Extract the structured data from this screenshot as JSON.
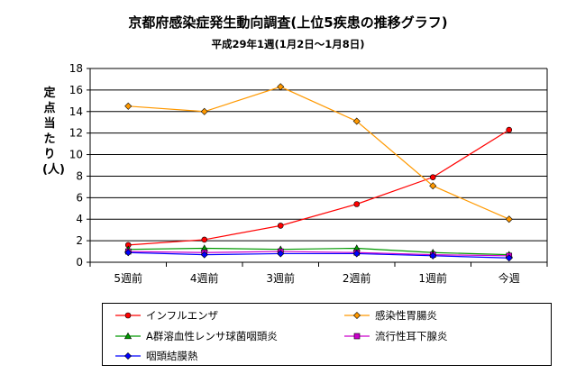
{
  "chart_data": {
    "type": "line",
    "title": "京都府感染症発生動向調査(上位5疾患の推移グラフ)",
    "subtitle": "平成29年1週(1月2日～1月8日)",
    "ylabel": "定点当たり(人)",
    "xlabel": "",
    "ylim": [
      0,
      18
    ],
    "yticks": [
      0,
      2,
      4,
      6,
      8,
      10,
      12,
      14,
      16,
      18
    ],
    "grid": true,
    "legend_position": "bottom",
    "categories": [
      "5週前",
      "4週前",
      "3週前",
      "2週前",
      "1週前",
      "今週"
    ],
    "series": [
      {
        "name": "インフルエンザ",
        "color": "#ff0000",
        "marker": "circle",
        "values": [
          1.6,
          2.1,
          3.4,
          5.4,
          7.9,
          12.3
        ]
      },
      {
        "name": "感染性胃腸炎",
        "color": "#ff9900",
        "marker": "diamond",
        "values": [
          14.5,
          14.0,
          16.3,
          13.1,
          7.1,
          4.0
        ]
      },
      {
        "name": "A群溶血性レンサ球菌咽頭炎",
        "color": "#009900",
        "marker": "triangle",
        "values": [
          1.2,
          1.3,
          1.2,
          1.3,
          0.9,
          0.7
        ]
      },
      {
        "name": "流行性耳下腺炎",
        "color": "#cc00cc",
        "marker": "square",
        "values": [
          1.0,
          0.9,
          1.0,
          0.9,
          0.7,
          0.6
        ]
      },
      {
        "name": "咽頭結膜熱",
        "color": "#0000ff",
        "marker": "diamond",
        "values": [
          0.9,
          0.7,
          0.8,
          0.8,
          0.6,
          0.4
        ]
      }
    ]
  }
}
